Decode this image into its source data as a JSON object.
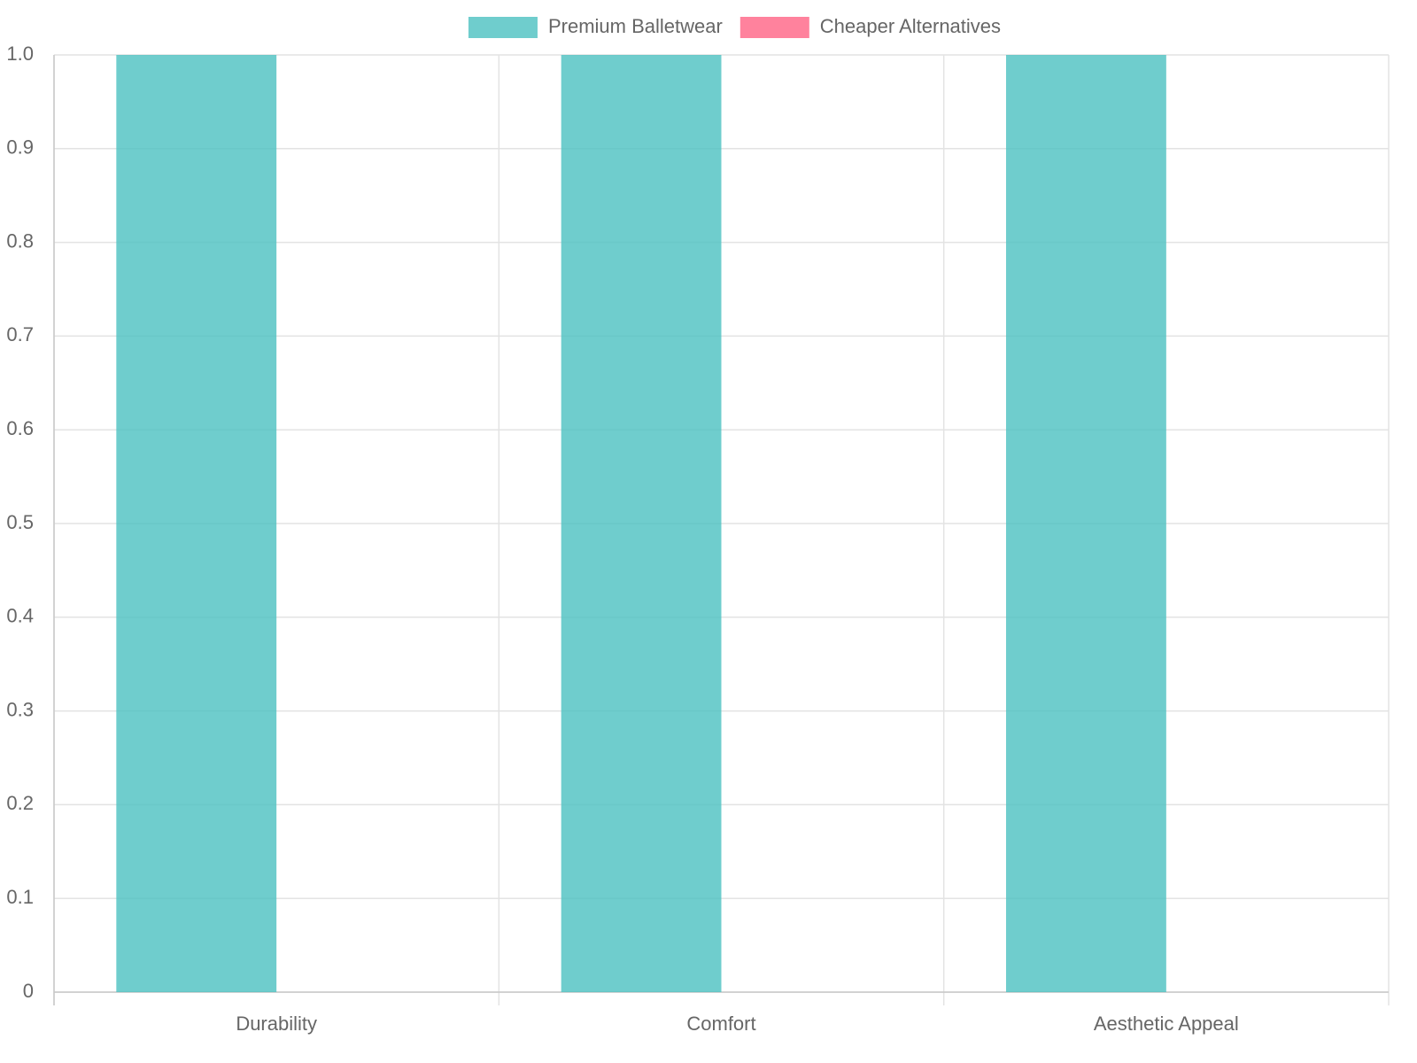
{
  "chart_data": {
    "type": "bar",
    "categories": [
      "Durability",
      "Comfort",
      "Aesthetic Appeal"
    ],
    "series": [
      {
        "name": "Premium Balletwear",
        "color": "rgba(75,192,192,0.8)",
        "values": [
          1,
          1,
          1
        ]
      },
      {
        "name": "Cheaper Alternatives",
        "color": "rgba(255,99,132,0.8)",
        "values": [
          0,
          0,
          0
        ]
      }
    ],
    "ylim": [
      0,
      1
    ],
    "yticks": [
      0,
      0.1,
      0.2,
      0.3,
      0.4,
      0.5,
      0.6,
      0.7,
      0.8,
      0.9,
      {
        "value": 1,
        "label": "1.0"
      }
    ],
    "grid": true,
    "legend": "top"
  }
}
